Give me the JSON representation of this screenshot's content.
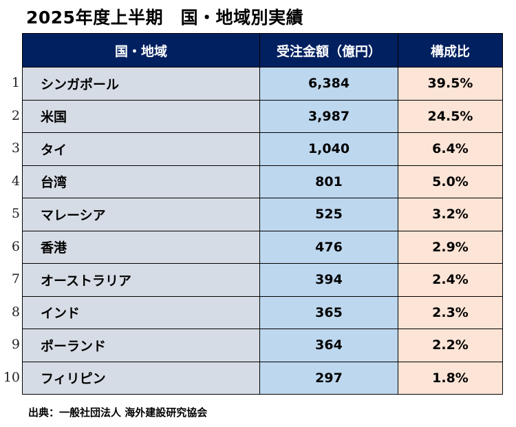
{
  "title": "2025年度上半期　国・地域別実績",
  "table": {
    "headers": [
      "国・地域",
      "受注金額（億円）",
      "構成比"
    ],
    "rows": [
      {
        "rank": "1",
        "name": "シンガポール",
        "amount": "6,384",
        "share": "39.5%"
      },
      {
        "rank": "2",
        "name": "米国",
        "amount": "3,987",
        "share": "24.5%"
      },
      {
        "rank": "3",
        "name": "タイ",
        "amount": "1,040",
        "share": "6.4%"
      },
      {
        "rank": "4",
        "name": "台湾",
        "amount": "801",
        "share": "5.0%"
      },
      {
        "rank": "5",
        "name": "マレーシア",
        "amount": "525",
        "share": "3.2%"
      },
      {
        "rank": "6",
        "name": "香港",
        "amount": "476",
        "share": "2.9%"
      },
      {
        "rank": "7",
        "name": "オーストラリア",
        "amount": "394",
        "share": "2.4%"
      },
      {
        "rank": "8",
        "name": "インド",
        "amount": "365",
        "share": "2.3%"
      },
      {
        "rank": "9",
        "name": "ポーランド",
        "amount": "364",
        "share": "2.2%"
      },
      {
        "rank": "10",
        "name": "フィリピン",
        "amount": "297",
        "share": "1.8%"
      }
    ]
  },
  "footer": "出典：一般社団法人 海外建設研究協会",
  "colors": {
    "header_bg": "#002060",
    "name_bg": "#d6dce5",
    "amount_bg": "#bdd7ee",
    "share_bg": "#fce4d6"
  }
}
